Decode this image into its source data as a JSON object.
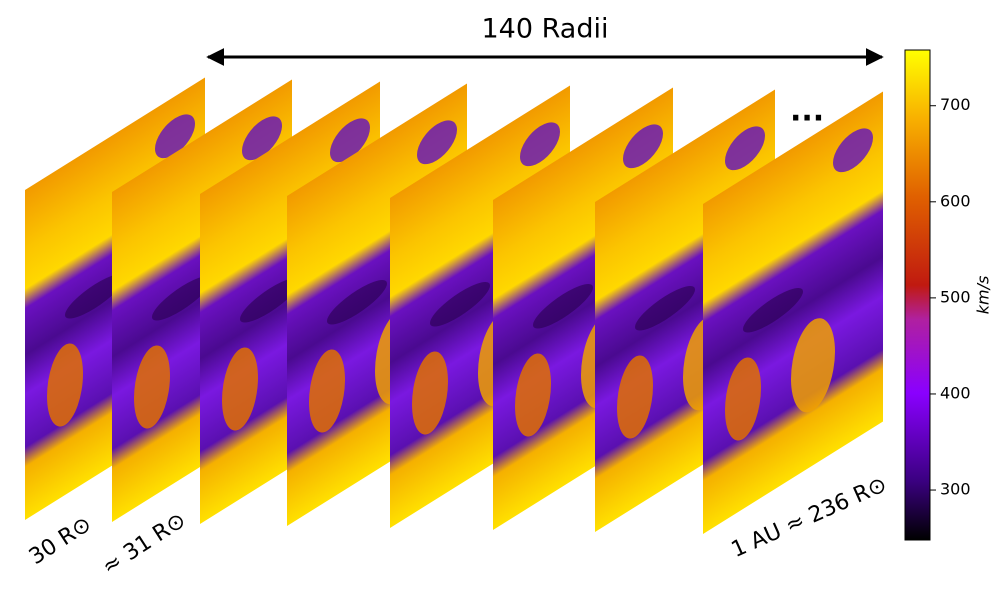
{
  "title": "140 Radii",
  "ellipsis": "...",
  "slice_labels": [
    "30 R⊙",
    "≈ 31 R⊙",
    "1 AU ≈ 236 R⊙"
  ],
  "chart_data": {
    "type": "colorbar",
    "label": "km/s",
    "ylim": [
      248,
      758
    ],
    "yticks": [
      300,
      400,
      500,
      600,
      700
    ]
  }
}
